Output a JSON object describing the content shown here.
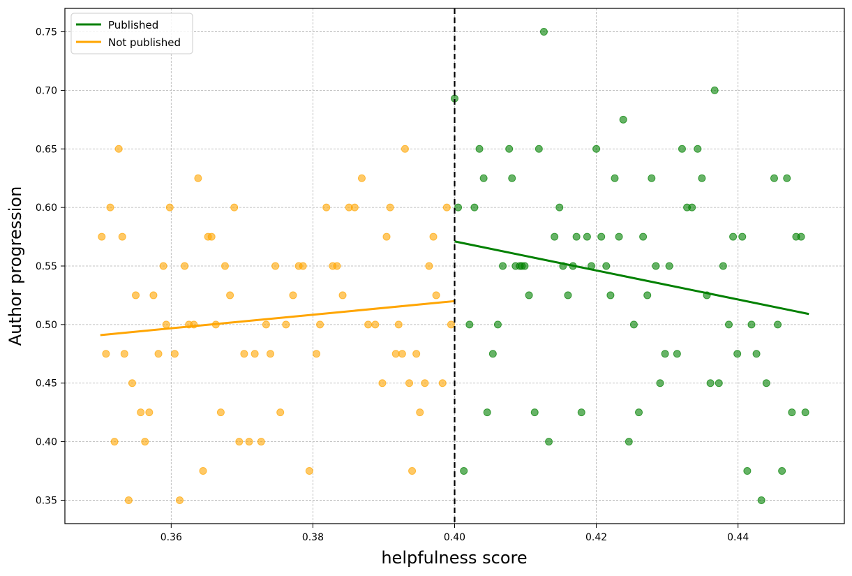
{
  "chart_data": {
    "type": "scatter",
    "title": "",
    "xlabel": "helpfulness score",
    "ylabel": "Author progression",
    "xlim": [
      0.345,
      0.455
    ],
    "ylim": [
      0.33,
      0.77
    ],
    "xticks": [
      0.36,
      0.38,
      0.4,
      0.42,
      0.44
    ],
    "xtick_labels": [
      "0.36",
      "0.38",
      "0.40",
      "0.42",
      "0.44"
    ],
    "yticks": [
      0.35,
      0.4,
      0.45,
      0.5,
      0.55,
      0.6,
      0.65,
      0.7,
      0.75
    ],
    "ytick_labels": [
      "0.35",
      "0.40",
      "0.45",
      "0.50",
      "0.55",
      "0.60",
      "0.65",
      "0.70",
      "0.75"
    ],
    "grid": true,
    "legend_position": "top-left",
    "cutoff": 0.4,
    "series": [
      {
        "name": "Published",
        "color": "#008000",
        "fit_line": {
          "x": [
            0.4,
            0.45
          ],
          "y": [
            0.571,
            0.509
          ]
        },
        "points": [
          [
            0.4,
            0.693
          ],
          [
            0.4005,
            0.6
          ],
          [
            0.4013,
            0.375
          ],
          [
            0.4021,
            0.5
          ],
          [
            0.4028,
            0.6
          ],
          [
            0.4035,
            0.65
          ],
          [
            0.4041,
            0.625
          ],
          [
            0.4046,
            0.425
          ],
          [
            0.4054,
            0.475
          ],
          [
            0.4061,
            0.5
          ],
          [
            0.4068,
            0.55
          ],
          [
            0.4077,
            0.65
          ],
          [
            0.4081,
            0.625
          ],
          [
            0.4086,
            0.55
          ],
          [
            0.4092,
            0.55
          ],
          [
            0.4095,
            0.55
          ],
          [
            0.4099,
            0.55
          ],
          [
            0.4105,
            0.525
          ],
          [
            0.4113,
            0.425
          ],
          [
            0.4119,
            0.65
          ],
          [
            0.4126,
            0.75
          ],
          [
            0.4133,
            0.4
          ],
          [
            0.4141,
            0.575
          ],
          [
            0.4148,
            0.6
          ],
          [
            0.4153,
            0.55
          ],
          [
            0.416,
            0.525
          ],
          [
            0.4167,
            0.55
          ],
          [
            0.4172,
            0.575
          ],
          [
            0.4179,
            0.425
          ],
          [
            0.4187,
            0.575
          ],
          [
            0.4193,
            0.55
          ],
          [
            0.42,
            0.65
          ],
          [
            0.4207,
            0.575
          ],
          [
            0.4214,
            0.55
          ],
          [
            0.422,
            0.525
          ],
          [
            0.4226,
            0.625
          ],
          [
            0.4232,
            0.575
          ],
          [
            0.4238,
            0.675
          ],
          [
            0.4246,
            0.4
          ],
          [
            0.4253,
            0.5
          ],
          [
            0.426,
            0.425
          ],
          [
            0.4266,
            0.575
          ],
          [
            0.4272,
            0.525
          ],
          [
            0.4278,
            0.625
          ],
          [
            0.4284,
            0.55
          ],
          [
            0.429,
            0.45
          ],
          [
            0.4297,
            0.475
          ],
          [
            0.4303,
            0.55
          ],
          [
            0.4314,
            0.475
          ],
          [
            0.4321,
            0.65
          ],
          [
            0.4328,
            0.6
          ],
          [
            0.4335,
            0.6
          ],
          [
            0.4343,
            0.65
          ],
          [
            0.4349,
            0.625
          ],
          [
            0.4356,
            0.525
          ],
          [
            0.4361,
            0.45
          ],
          [
            0.4367,
            0.7
          ],
          [
            0.4373,
            0.45
          ],
          [
            0.4379,
            0.55
          ],
          [
            0.4387,
            0.5
          ],
          [
            0.4393,
            0.575
          ],
          [
            0.4399,
            0.475
          ],
          [
            0.4406,
            0.575
          ],
          [
            0.4413,
            0.375
          ],
          [
            0.4419,
            0.5
          ],
          [
            0.4426,
            0.475
          ],
          [
            0.4433,
            0.35
          ],
          [
            0.444,
            0.45
          ],
          [
            0.4451,
            0.625
          ],
          [
            0.4456,
            0.5
          ],
          [
            0.4462,
            0.375
          ],
          [
            0.4469,
            0.625
          ],
          [
            0.4476,
            0.425
          ],
          [
            0.4482,
            0.575
          ],
          [
            0.4489,
            0.575
          ],
          [
            0.4495,
            0.425
          ]
        ]
      },
      {
        "name": "Not published",
        "color": "#FFA500",
        "fit_line": {
          "x": [
            0.35,
            0.4
          ],
          "y": [
            0.491,
            0.52
          ]
        },
        "points": [
          [
            0.3502,
            0.575
          ],
          [
            0.3508,
            0.475
          ],
          [
            0.3514,
            0.6
          ],
          [
            0.352,
            0.4
          ],
          [
            0.3526,
            0.65
          ],
          [
            0.3531,
            0.575
          ],
          [
            0.3534,
            0.475
          ],
          [
            0.354,
            0.35
          ],
          [
            0.3545,
            0.45
          ],
          [
            0.355,
            0.525
          ],
          [
            0.3557,
            0.425
          ],
          [
            0.3563,
            0.4
          ],
          [
            0.3569,
            0.425
          ],
          [
            0.3575,
            0.525
          ],
          [
            0.3582,
            0.475
          ],
          [
            0.3589,
            0.55
          ],
          [
            0.3593,
            0.5
          ],
          [
            0.3598,
            0.6
          ],
          [
            0.3605,
            0.475
          ],
          [
            0.3612,
            0.35
          ],
          [
            0.3619,
            0.55
          ],
          [
            0.3625,
            0.5
          ],
          [
            0.3632,
            0.5
          ],
          [
            0.3638,
            0.625
          ],
          [
            0.3645,
            0.375
          ],
          [
            0.3652,
            0.575
          ],
          [
            0.3657,
            0.575
          ],
          [
            0.3663,
            0.5
          ],
          [
            0.367,
            0.425
          ],
          [
            0.3676,
            0.55
          ],
          [
            0.3683,
            0.525
          ],
          [
            0.3689,
            0.6
          ],
          [
            0.3696,
            0.4
          ],
          [
            0.3703,
            0.475
          ],
          [
            0.371,
            0.4
          ],
          [
            0.3718,
            0.475
          ],
          [
            0.3727,
            0.4
          ],
          [
            0.3734,
            0.5
          ],
          [
            0.374,
            0.475
          ],
          [
            0.3747,
            0.55
          ],
          [
            0.3754,
            0.425
          ],
          [
            0.3762,
            0.5
          ],
          [
            0.3772,
            0.525
          ],
          [
            0.378,
            0.55
          ],
          [
            0.3786,
            0.55
          ],
          [
            0.3795,
            0.375
          ],
          [
            0.3805,
            0.475
          ],
          [
            0.381,
            0.5
          ],
          [
            0.3819,
            0.6
          ],
          [
            0.3828,
            0.55
          ],
          [
            0.3834,
            0.55
          ],
          [
            0.3842,
            0.525
          ],
          [
            0.3851,
            0.6
          ],
          [
            0.3859,
            0.6
          ],
          [
            0.3869,
            0.625
          ],
          [
            0.3878,
            0.5
          ],
          [
            0.3888,
            0.5
          ],
          [
            0.3898,
            0.45
          ],
          [
            0.3904,
            0.575
          ],
          [
            0.3909,
            0.6
          ],
          [
            0.3917,
            0.475
          ],
          [
            0.3921,
            0.5
          ],
          [
            0.3926,
            0.475
          ],
          [
            0.393,
            0.65
          ],
          [
            0.3936,
            0.45
          ],
          [
            0.394,
            0.375
          ],
          [
            0.3946,
            0.475
          ],
          [
            0.3951,
            0.425
          ],
          [
            0.3958,
            0.45
          ],
          [
            0.3964,
            0.55
          ],
          [
            0.397,
            0.575
          ],
          [
            0.3974,
            0.525
          ],
          [
            0.3983,
            0.45
          ],
          [
            0.3989,
            0.6
          ],
          [
            0.3995,
            0.5
          ]
        ]
      }
    ]
  }
}
